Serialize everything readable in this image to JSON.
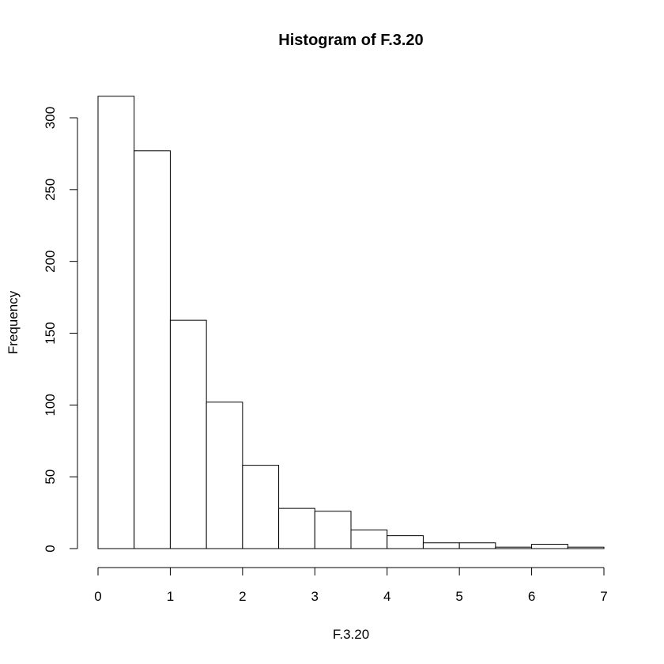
{
  "chart_data": {
    "type": "bar",
    "title": "Histogram of F.3.20",
    "xlabel": "F.3.20",
    "ylabel": "Frequency",
    "bin_edges": [
      0,
      0.5,
      1,
      1.5,
      2,
      2.5,
      3,
      3.5,
      4,
      4.5,
      5,
      5.5,
      6,
      6.5,
      7
    ],
    "values": [
      315,
      277,
      159,
      102,
      58,
      28,
      26,
      13,
      9,
      4,
      4,
      1,
      3,
      1
    ],
    "xlim": [
      0,
      7
    ],
    "ylim": [
      0,
      300
    ],
    "x_ticks": [
      "0",
      "1",
      "2",
      "3",
      "4",
      "5",
      "6",
      "7"
    ],
    "y_ticks": [
      "0",
      "50",
      "100",
      "150",
      "200",
      "250",
      "300"
    ],
    "grid": false,
    "bar_fill": "#ffffff",
    "bar_stroke": "#000000"
  }
}
